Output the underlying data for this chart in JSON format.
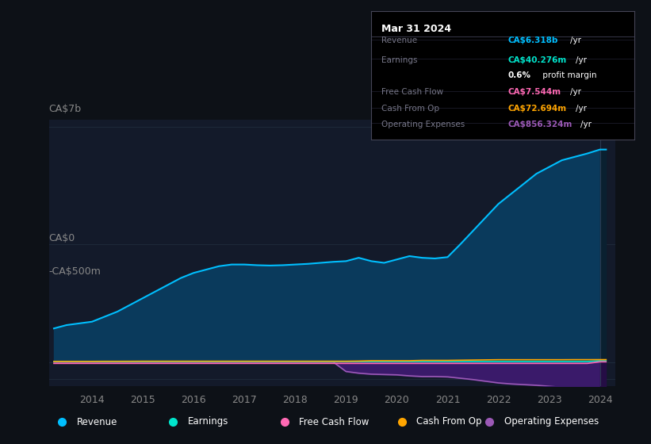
{
  "bg_color": "#0d1117",
  "plot_bg_color": "#131a2a",
  "years": [
    2013.25,
    2013.5,
    2013.75,
    2014.0,
    2014.25,
    2014.5,
    2014.75,
    2015.0,
    2015.25,
    2015.5,
    2015.75,
    2016.0,
    2016.25,
    2016.5,
    2016.75,
    2017.0,
    2017.25,
    2017.5,
    2017.75,
    2018.0,
    2018.25,
    2018.5,
    2018.75,
    2019.0,
    2019.25,
    2019.5,
    2019.75,
    2020.0,
    2020.25,
    2020.5,
    2020.75,
    2021.0,
    2021.25,
    2021.5,
    2021.75,
    2022.0,
    2022.25,
    2022.5,
    2022.75,
    2023.0,
    2023.25,
    2023.5,
    2023.75,
    2024.0,
    2024.12
  ],
  "revenue": [
    1.0,
    1.1,
    1.15,
    1.2,
    1.35,
    1.5,
    1.7,
    1.9,
    2.1,
    2.3,
    2.5,
    2.65,
    2.75,
    2.85,
    2.9,
    2.9,
    2.88,
    2.87,
    2.88,
    2.9,
    2.92,
    2.95,
    2.98,
    3.0,
    3.1,
    3.0,
    2.95,
    3.05,
    3.15,
    3.1,
    3.08,
    3.12,
    3.5,
    3.9,
    4.3,
    4.7,
    5.0,
    5.3,
    5.6,
    5.8,
    6.0,
    6.1,
    6.2,
    6.318,
    6.318
  ],
  "earnings": [
    0.01,
    0.01,
    0.01,
    0.01,
    0.01,
    0.01,
    0.01,
    0.012,
    0.012,
    0.013,
    0.013,
    0.013,
    0.013,
    0.013,
    0.013,
    0.013,
    0.013,
    0.013,
    0.013,
    0.013,
    0.013,
    0.013,
    0.013,
    0.013,
    0.013,
    0.013,
    0.013,
    0.013,
    0.013,
    0.013,
    0.013,
    0.013,
    0.013,
    0.013,
    0.013,
    0.013,
    0.013,
    0.013,
    0.013,
    0.013,
    0.013,
    0.013,
    0.013,
    0.04028,
    0.04028
  ],
  "free_cash_flow": [
    -0.04,
    -0.04,
    -0.04,
    -0.04,
    -0.04,
    -0.04,
    -0.04,
    -0.04,
    -0.04,
    -0.04,
    -0.04,
    -0.04,
    -0.04,
    -0.04,
    -0.04,
    -0.04,
    -0.04,
    -0.04,
    -0.04,
    -0.04,
    -0.04,
    -0.04,
    -0.04,
    -0.04,
    -0.04,
    -0.04,
    -0.04,
    -0.04,
    -0.04,
    -0.04,
    -0.04,
    -0.04,
    -0.04,
    -0.04,
    -0.04,
    -0.04,
    -0.04,
    -0.04,
    -0.04,
    -0.04,
    -0.04,
    -0.04,
    -0.04,
    0.007544,
    0.007544
  ],
  "cash_from_op": [
    0.02,
    0.02,
    0.02,
    0.02,
    0.022,
    0.022,
    0.023,
    0.025,
    0.025,
    0.025,
    0.025,
    0.025,
    0.025,
    0.025,
    0.025,
    0.025,
    0.025,
    0.025,
    0.025,
    0.025,
    0.025,
    0.025,
    0.025,
    0.025,
    0.03,
    0.04,
    0.04,
    0.04,
    0.04,
    0.05,
    0.05,
    0.05,
    0.055,
    0.06,
    0.065,
    0.07,
    0.07,
    0.07,
    0.07,
    0.07,
    0.07,
    0.072,
    0.072,
    0.072694,
    0.072694
  ],
  "operating_expenses": [
    0.0,
    0.0,
    0.0,
    0.0,
    0.0,
    0.0,
    0.0,
    0.0,
    0.0,
    0.0,
    0.0,
    0.0,
    0.0,
    0.0,
    0.0,
    0.0,
    0.0,
    0.0,
    0.0,
    0.0,
    0.0,
    0.0,
    0.0,
    -0.28,
    -0.33,
    -0.36,
    -0.37,
    -0.38,
    -0.41,
    -0.43,
    -0.43,
    -0.44,
    -0.48,
    -0.52,
    -0.57,
    -0.62,
    -0.65,
    -0.67,
    -0.69,
    -0.72,
    -0.75,
    -0.78,
    -0.8,
    -0.856324,
    -0.856324
  ],
  "revenue_color": "#00bfff",
  "earnings_color": "#00e5cc",
  "free_cash_flow_color": "#ff69b4",
  "cash_from_op_color": "#ffa500",
  "operating_expenses_color": "#9b59b6",
  "revenue_fill": "#0a3a5c",
  "revenue_fill_highlight": "#0a2030",
  "op_exp_fill": "#3a1a6a",
  "op_exp_fill_highlight": "#250d45",
  "info_box": {
    "date": "Mar 31 2024",
    "revenue_val": "CA$6.318b",
    "revenue_color": "#00bfff",
    "earnings_val": "CA$40.276m",
    "earnings_color": "#00e5cc",
    "profit_margin": "0.6%",
    "fcf_val": "CA$7.544m",
    "fcf_color": "#ff69b4",
    "cash_op_val": "CA$72.694m",
    "cash_op_color": "#ffa500",
    "op_exp_val": "CA$856.324m",
    "op_exp_color": "#9b59b6"
  },
  "legend": [
    {
      "label": "Revenue",
      "color": "#00bfff"
    },
    {
      "label": "Earnings",
      "color": "#00e5cc"
    },
    {
      "label": "Free Cash Flow",
      "color": "#ff69b4"
    },
    {
      "label": "Cash From Op",
      "color": "#ffa500"
    },
    {
      "label": "Operating Expenses",
      "color": "#9b59b6"
    }
  ],
  "xlim": [
    2013.15,
    2024.3
  ],
  "ylim": [
    -0.72,
    7.2
  ],
  "xticks": [
    2014,
    2015,
    2016,
    2017,
    2018,
    2019,
    2020,
    2021,
    2022,
    2023,
    2024
  ],
  "grid_color": "#1e2a3a",
  "highlight_x": 2024.0
}
